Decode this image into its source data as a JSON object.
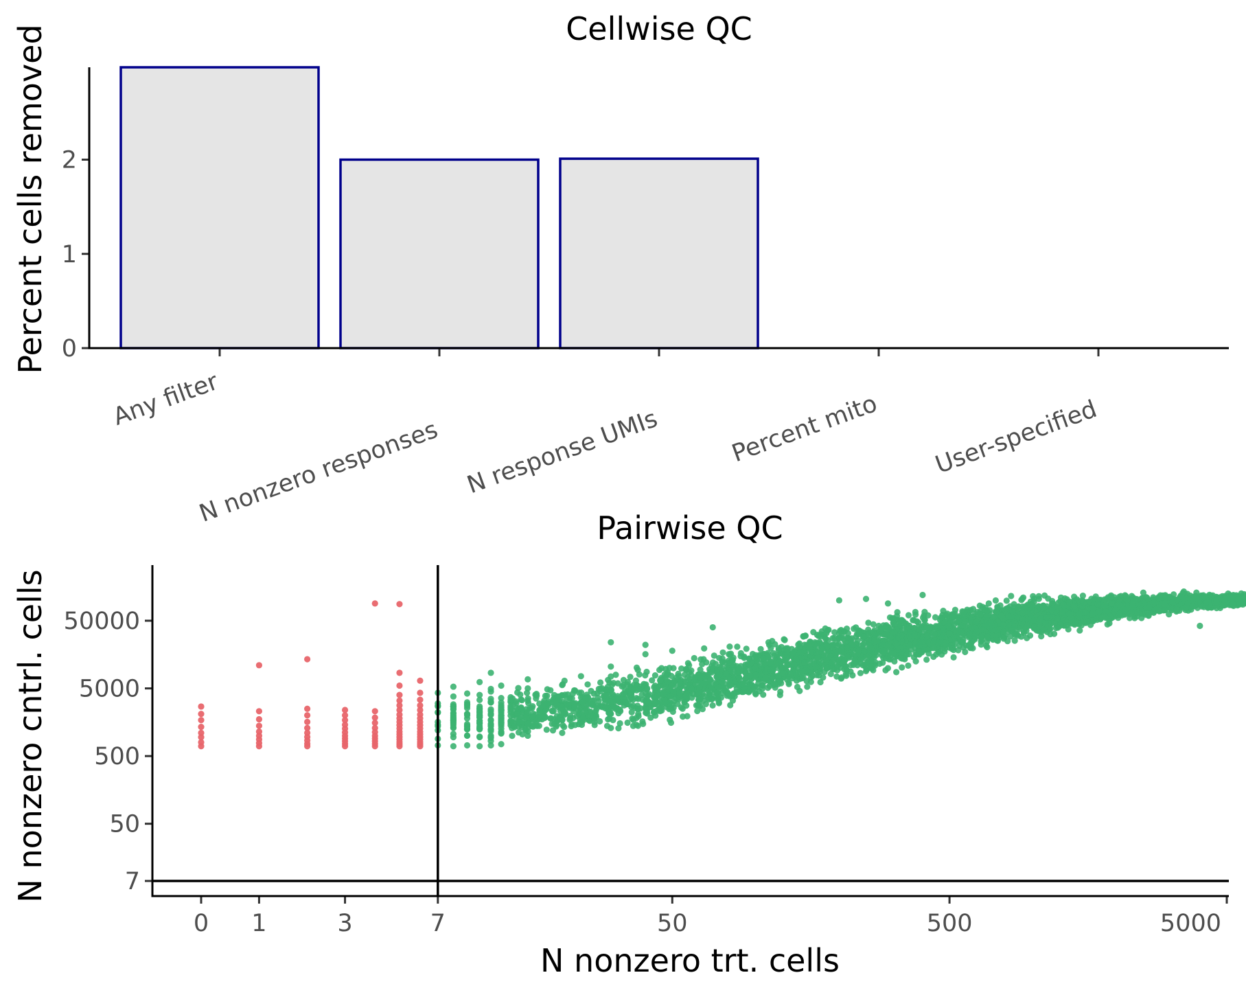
{
  "colors": {
    "bar_fill": "#e5e5e5",
    "bar_outline": "#00008b",
    "pass": "#3cb371",
    "fail": "#e8656a"
  },
  "chart_data": [
    {
      "type": "bar",
      "title": "Cellwise QC",
      "xlabel": "",
      "ylabel": "Percent cells removed",
      "categories": [
        "Any filter",
        "N nonzero responses",
        "N response UMIs",
        "Percent mito",
        "User-specified"
      ],
      "values": [
        2.98,
        2.0,
        2.01,
        0,
        0
      ],
      "yticks": [
        0,
        1,
        2
      ],
      "ylim": [
        0,
        2.98
      ],
      "grid": false,
      "legend": "none"
    },
    {
      "type": "scatter",
      "title": "Pairwise QC",
      "xlabel": "N nonzero trt. cells",
      "ylabel": "N nonzero cntrl. cells",
      "xscale": "pseudo-log",
      "yscale": "pseudo-log",
      "x_ticks": [
        0,
        1,
        3,
        7,
        50,
        500,
        5000
      ],
      "x_tick_labels": [
        "0",
        "1",
        "3",
        "7",
        "50",
        "500",
        "5000"
      ],
      "y_ticks": [
        7,
        50,
        500,
        5000,
        50000
      ],
      "y_tick_labels": [
        "7",
        "50",
        "500",
        "5000",
        "50000"
      ],
      "threshold_x": 7,
      "threshold_y": 7,
      "grid": false,
      "legend": "none",
      "fail_points": [
        [
          0,
          700
        ],
        [
          0,
          800
        ],
        [
          0,
          950
        ],
        [
          0,
          1100
        ],
        [
          0,
          1350
        ],
        [
          0,
          1700
        ],
        [
          0,
          2100
        ],
        [
          0,
          2700
        ],
        [
          1,
          700
        ],
        [
          1,
          780
        ],
        [
          1,
          880
        ],
        [
          1,
          1000
        ],
        [
          1,
          1150
        ],
        [
          1,
          1400
        ],
        [
          1,
          1750
        ],
        [
          1,
          2300
        ],
        [
          1,
          11000
        ],
        [
          2,
          700
        ],
        [
          2,
          760
        ],
        [
          2,
          850
        ],
        [
          2,
          960
        ],
        [
          2,
          1100
        ],
        [
          2,
          1300
        ],
        [
          2,
          1600
        ],
        [
          2,
          2000
        ],
        [
          2,
          2500
        ],
        [
          2,
          13500
        ],
        [
          3,
          700
        ],
        [
          3,
          760
        ],
        [
          3,
          830
        ],
        [
          3,
          910
        ],
        [
          3,
          1000
        ],
        [
          3,
          1120
        ],
        [
          3,
          1270
        ],
        [
          3,
          1450
        ],
        [
          3,
          1700
        ],
        [
          3,
          2000
        ],
        [
          3,
          2400
        ],
        [
          4,
          700
        ],
        [
          4,
          760
        ],
        [
          4,
          830
        ],
        [
          4,
          910
        ],
        [
          4,
          1000
        ],
        [
          4,
          1130
        ],
        [
          4,
          1300
        ],
        [
          4,
          1550
        ],
        [
          4,
          1850
        ],
        [
          4,
          2300
        ],
        [
          4,
          90000
        ],
        [
          5,
          700
        ],
        [
          5,
          750
        ],
        [
          5,
          810
        ],
        [
          5,
          880
        ],
        [
          5,
          960
        ],
        [
          5,
          1050
        ],
        [
          5,
          1150
        ],
        [
          5,
          1280
        ],
        [
          5,
          1430
        ],
        [
          5,
          1600
        ],
        [
          5,
          1800
        ],
        [
          5,
          2050
        ],
        [
          5,
          2400
        ],
        [
          5,
          2800
        ],
        [
          5,
          3300
        ],
        [
          5,
          4000
        ],
        [
          5,
          5500
        ],
        [
          5,
          8500
        ],
        [
          5,
          88000
        ],
        [
          6,
          700
        ],
        [
          6,
          750
        ],
        [
          6,
          810
        ],
        [
          6,
          880
        ],
        [
          6,
          960
        ],
        [
          6,
          1050
        ],
        [
          6,
          1150
        ],
        [
          6,
          1280
        ],
        [
          6,
          1430
        ],
        [
          6,
          1600
        ],
        [
          6,
          1800
        ],
        [
          6,
          2050
        ],
        [
          6,
          2400
        ],
        [
          6,
          2800
        ],
        [
          6,
          3400
        ],
        [
          6,
          4300
        ],
        [
          6,
          6500
        ]
      ],
      "pass_points": [
        [
          7,
          720
        ],
        [
          7,
          900
        ],
        [
          7,
          1200
        ],
        [
          7,
          1600
        ],
        [
          7,
          2200
        ],
        [
          7,
          3000
        ],
        [
          7,
          4300
        ],
        [
          8,
          700
        ],
        [
          8,
          950
        ],
        [
          8,
          1300
        ],
        [
          8,
          1800
        ],
        [
          8,
          2500
        ],
        [
          8,
          3800
        ],
        [
          8,
          5300
        ],
        [
          9,
          720
        ],
        [
          9,
          1000
        ],
        [
          9,
          1400
        ],
        [
          9,
          2000
        ],
        [
          9,
          2900
        ],
        [
          9,
          4200
        ],
        [
          10,
          700
        ],
        [
          10,
          950
        ],
        [
          10,
          1300
        ],
        [
          10,
          1900
        ],
        [
          10,
          2700
        ],
        [
          10,
          4000
        ],
        [
          10,
          6200
        ],
        [
          11,
          720
        ],
        [
          11,
          1000
        ],
        [
          11,
          1450
        ],
        [
          11,
          2100
        ],
        [
          11,
          3100
        ],
        [
          11,
          4500
        ],
        [
          11,
          8500
        ],
        [
          12,
          750
        ],
        [
          12,
          1100
        ],
        [
          12,
          1600
        ],
        [
          12,
          2400
        ],
        [
          12,
          3600
        ],
        [
          12,
          5500
        ],
        [
          15,
          1000
        ],
        [
          15,
          1500
        ],
        [
          15,
          2200
        ],
        [
          15,
          3300
        ],
        [
          15,
          5000
        ],
        [
          15,
          6800
        ],
        [
          20,
          1100
        ],
        [
          20,
          1700
        ],
        [
          20,
          2600
        ],
        [
          20,
          3900
        ],
        [
          20,
          5600
        ],
        [
          30,
          1300
        ],
        [
          30,
          2100
        ],
        [
          30,
          3200
        ],
        [
          30,
          4800
        ],
        [
          30,
          7500
        ],
        [
          30,
          10500
        ],
        [
          30,
          24000
        ],
        [
          40,
          22000
        ],
        [
          40,
          16000
        ],
        [
          50,
          18000
        ],
        [
          50,
          2900
        ],
        [
          60,
          14000
        ],
        [
          70,
          40000
        ],
        [
          80,
          16000
        ],
        [
          100,
          4100
        ],
        [
          100,
          8000
        ],
        [
          150,
          12000
        ],
        [
          150,
          22000
        ],
        [
          200,
          100000
        ],
        [
          250,
          105000
        ],
        [
          250,
          9000
        ],
        [
          300,
          90000
        ],
        [
          400,
          120000
        ],
        [
          500,
          20000
        ],
        [
          800,
          75000
        ],
        [
          1000,
          115000
        ],
        [
          1500,
          100000
        ],
        [
          2500,
          130000
        ],
        [
          3000,
          115000
        ],
        [
          3500,
          135000
        ],
        [
          4000,
          42000
        ],
        [
          8000,
          135000
        ],
        [
          12000,
          105000
        ]
      ],
      "pass_band": {
        "note": "dense cloud of thousands of points",
        "x_range": [
          7,
          15000
        ],
        "y_lower_at_x": [
          [
            7,
            700
          ],
          [
            20,
            720
          ],
          [
            50,
            1200
          ],
          [
            100,
            2500
          ],
          [
            300,
            7500
          ],
          [
            1000,
            25000
          ],
          [
            3000,
            60000
          ],
          [
            10000,
            100000
          ]
        ],
        "y_upper_at_x": [
          [
            7,
            4500
          ],
          [
            20,
            7500
          ],
          [
            50,
            16000
          ],
          [
            100,
            30000
          ],
          [
            300,
            75000
          ],
          [
            1000,
            130000
          ],
          [
            3000,
            135000
          ],
          [
            10000,
            135000
          ]
        ]
      }
    }
  ]
}
